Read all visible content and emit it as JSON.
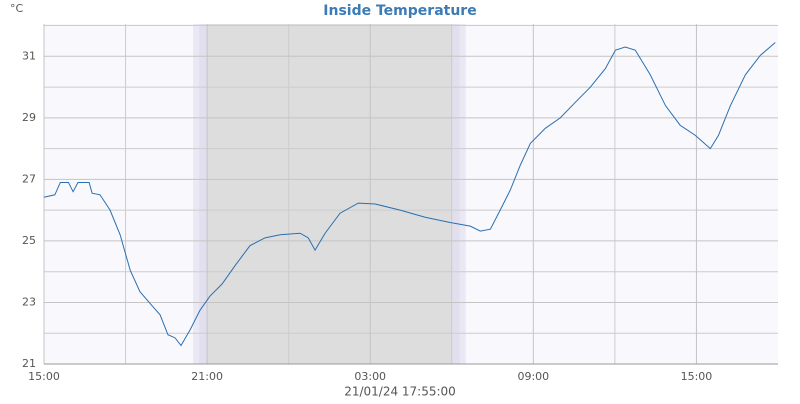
{
  "chart_data": {
    "type": "line",
    "title": "Inside Temperature",
    "y_unit_label": "°C",
    "footer": "21/01/24 17:55:00",
    "x": [
      0,
      0.4,
      0.6,
      0.9,
      1.07,
      1.25,
      1.66,
      1.77,
      2.06,
      2.43,
      2.8,
      3.17,
      3.53,
      3.97,
      4.27,
      4.56,
      4.82,
      5.04,
      5.37,
      5.74,
      6.1,
      6.55,
      7.03,
      7.58,
      8.13,
      8.69,
      9.42,
      9.72,
      9.97,
      10.34,
      10.89,
      11.56,
      12.18,
      13.1,
      14.02,
      14.94,
      15.68,
      16.05,
      16.42,
      16.78,
      17.15,
      17.52,
      17.89,
      18.44,
      18.99,
      19.54,
      20.1,
      20.65,
      21.02,
      21.38,
      21.75,
      22.3,
      22.86,
      23.4,
      23.96,
      24.51,
      24.81,
      25.25,
      25.8,
      26.35,
      26.9
    ],
    "series": [
      {
        "name": "Inside Temperature",
        "color": "#2a6fb0",
        "values": [
          26.42,
          26.5,
          26.9,
          26.9,
          26.6,
          26.9,
          26.9,
          26.55,
          26.5,
          26.0,
          25.2,
          24.05,
          23.35,
          22.9,
          22.6,
          21.95,
          21.85,
          21.6,
          22.1,
          22.75,
          23.2,
          23.6,
          24.2,
          24.85,
          25.1,
          25.2,
          25.25,
          25.1,
          24.7,
          25.25,
          25.9,
          26.23,
          26.2,
          26.0,
          25.77,
          25.6,
          25.48,
          25.32,
          25.38,
          26.0,
          26.65,
          27.46,
          28.17,
          28.66,
          29.0,
          29.5,
          30.0,
          30.6,
          31.2,
          31.3,
          31.2,
          30.4,
          29.4,
          28.76,
          28.43,
          28.0,
          28.43,
          29.4,
          30.4,
          31.03,
          31.45
        ]
      }
    ],
    "xlim": [
      0,
      27
    ],
    "ylim": [
      21,
      32.05
    ],
    "xticks": [
      {
        "value": 0,
        "label": "15:00"
      },
      {
        "value": 6,
        "label": "21:00"
      },
      {
        "value": 12,
        "label": "03:00"
      },
      {
        "value": 18,
        "label": "09:00"
      },
      {
        "value": 24,
        "label": "15:00"
      }
    ],
    "xminorticks": [
      3,
      9,
      15,
      21
    ],
    "yticks": [
      21,
      23,
      25,
      27,
      29,
      31
    ],
    "yminorticks": [
      22,
      24,
      26,
      28,
      30,
      32
    ],
    "shaded_regions": [
      [
        6,
        15
      ]
    ],
    "grid": true
  }
}
